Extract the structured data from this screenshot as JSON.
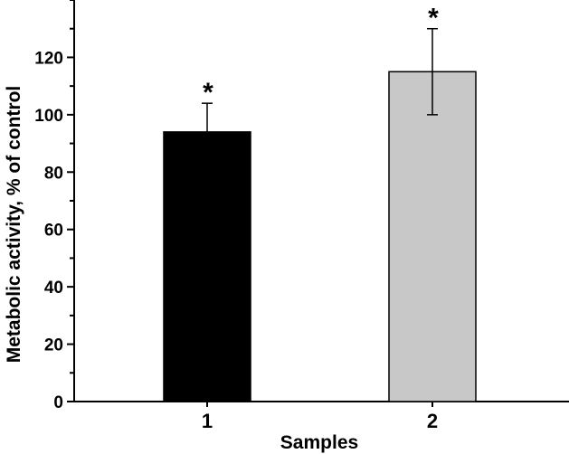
{
  "chart_data": {
    "type": "bar",
    "title": "",
    "xlabel": "Samples",
    "ylabel": "Metabolic activity, % of control",
    "categories": [
      "1",
      "2"
    ],
    "values": [
      94,
      115
    ],
    "errors": [
      10,
      15
    ],
    "colors": [
      "#000000",
      "#c8c8c8"
    ],
    "annotations": [
      "*",
      "*"
    ],
    "ylim": [
      0,
      140
    ],
    "yticks": [
      0,
      20,
      40,
      60,
      80,
      100,
      120
    ],
    "grid": false,
    "legend": "none"
  }
}
